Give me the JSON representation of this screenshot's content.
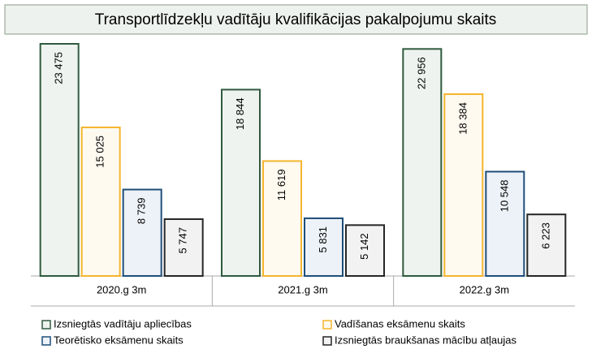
{
  "chart_data": {
    "type": "bar",
    "title": "Transportlīdzekļu vadītāju kvalifikācijas pakalpojumu skaits",
    "categories": [
      "2020.g 3m",
      "2021.g 3m",
      "2022.g 3m"
    ],
    "series": [
      {
        "name": "Izsniegtās vadītāju apliecības",
        "color": "#2f5a3e",
        "fill": "#eef3ef",
        "values": [
          23475,
          18844,
          22956
        ],
        "value_labels": [
          "23 475",
          "18 844",
          "22 956"
        ]
      },
      {
        "name": "Vadīšanas eksāmenu skaits",
        "color": "#f4b52e",
        "fill": "#fffaf0",
        "values": [
          15025,
          11619,
          18384
        ],
        "value_labels": [
          "15 025",
          "11 619",
          "18 384"
        ]
      },
      {
        "name": "Teorētisko eksāmenu skaits",
        "color": "#1f4e79",
        "fill": "#edf2f8",
        "values": [
          8739,
          5831,
          10548
        ],
        "value_labels": [
          "8 739",
          "5 831",
          "10 548"
        ]
      },
      {
        "name": "Izsniegtās braukšanas mācību atļaujas",
        "color": "#262626",
        "fill": "#f2f2f2",
        "values": [
          5747,
          5142,
          6223
        ],
        "value_labels": [
          "5 747",
          "5 142",
          "6 223"
        ]
      }
    ]
  }
}
